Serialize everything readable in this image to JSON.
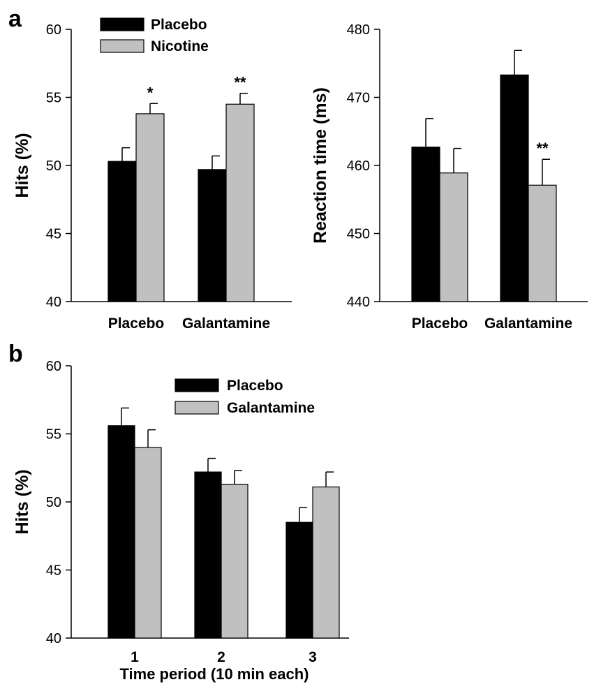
{
  "panels": {
    "a": "a",
    "b": "b"
  },
  "colors": {
    "placebo": "#000000",
    "treatment": "#c0c0c0",
    "axis": "#000000"
  },
  "chart_data": [
    {
      "id": "a-left",
      "type": "bar",
      "categories": [
        "Placebo",
        "Galantamine"
      ],
      "series": [
        {
          "name": "Placebo",
          "values": [
            50.3,
            49.7
          ],
          "errors": [
            1.0,
            1.0
          ]
        },
        {
          "name": "Nicotine",
          "values": [
            53.8,
            54.5
          ],
          "errors": [
            0.75,
            0.8
          ]
        }
      ],
      "annotations": [
        {
          "category": 0,
          "series": 1,
          "text": "*"
        },
        {
          "category": 1,
          "series": 1,
          "text": "**"
        }
      ],
      "xlabel": "",
      "ylabel": "Hits (%)",
      "ylim": [
        40,
        60
      ],
      "yticks": [
        40,
        45,
        50,
        55,
        60
      ],
      "legend": "top-left",
      "grid": false
    },
    {
      "id": "a-right",
      "type": "bar",
      "categories": [
        "Placebo",
        "Galantamine"
      ],
      "series": [
        {
          "name": "Placebo",
          "values": [
            462.7,
            473.3
          ],
          "errors": [
            4.2,
            3.6
          ]
        },
        {
          "name": "Nicotine",
          "values": [
            458.9,
            457.1
          ],
          "errors": [
            3.6,
            3.8
          ]
        }
      ],
      "annotations": [
        {
          "category": 1,
          "series": 1,
          "text": "**"
        }
      ],
      "xlabel": "",
      "ylabel": "Reaction time (ms)",
      "ylim": [
        440,
        480
      ],
      "yticks": [
        440,
        450,
        460,
        470,
        480
      ],
      "legend": "none",
      "grid": false
    },
    {
      "id": "b",
      "type": "bar",
      "categories": [
        "1",
        "2",
        "3"
      ],
      "series": [
        {
          "name": "Placebo",
          "values": [
            55.6,
            52.2,
            48.5
          ],
          "errors": [
            1.3,
            1.0,
            1.1
          ]
        },
        {
          "name": "Galantamine",
          "values": [
            54.0,
            51.3,
            51.1
          ],
          "errors": [
            1.3,
            1.0,
            1.1
          ]
        }
      ],
      "annotations": [],
      "xlabel": "Time period (10 min each)",
      "ylabel": "Hits (%)",
      "ylim": [
        40,
        60
      ],
      "yticks": [
        40,
        45,
        50,
        55,
        60
      ],
      "legend": "top-center",
      "grid": false
    }
  ]
}
